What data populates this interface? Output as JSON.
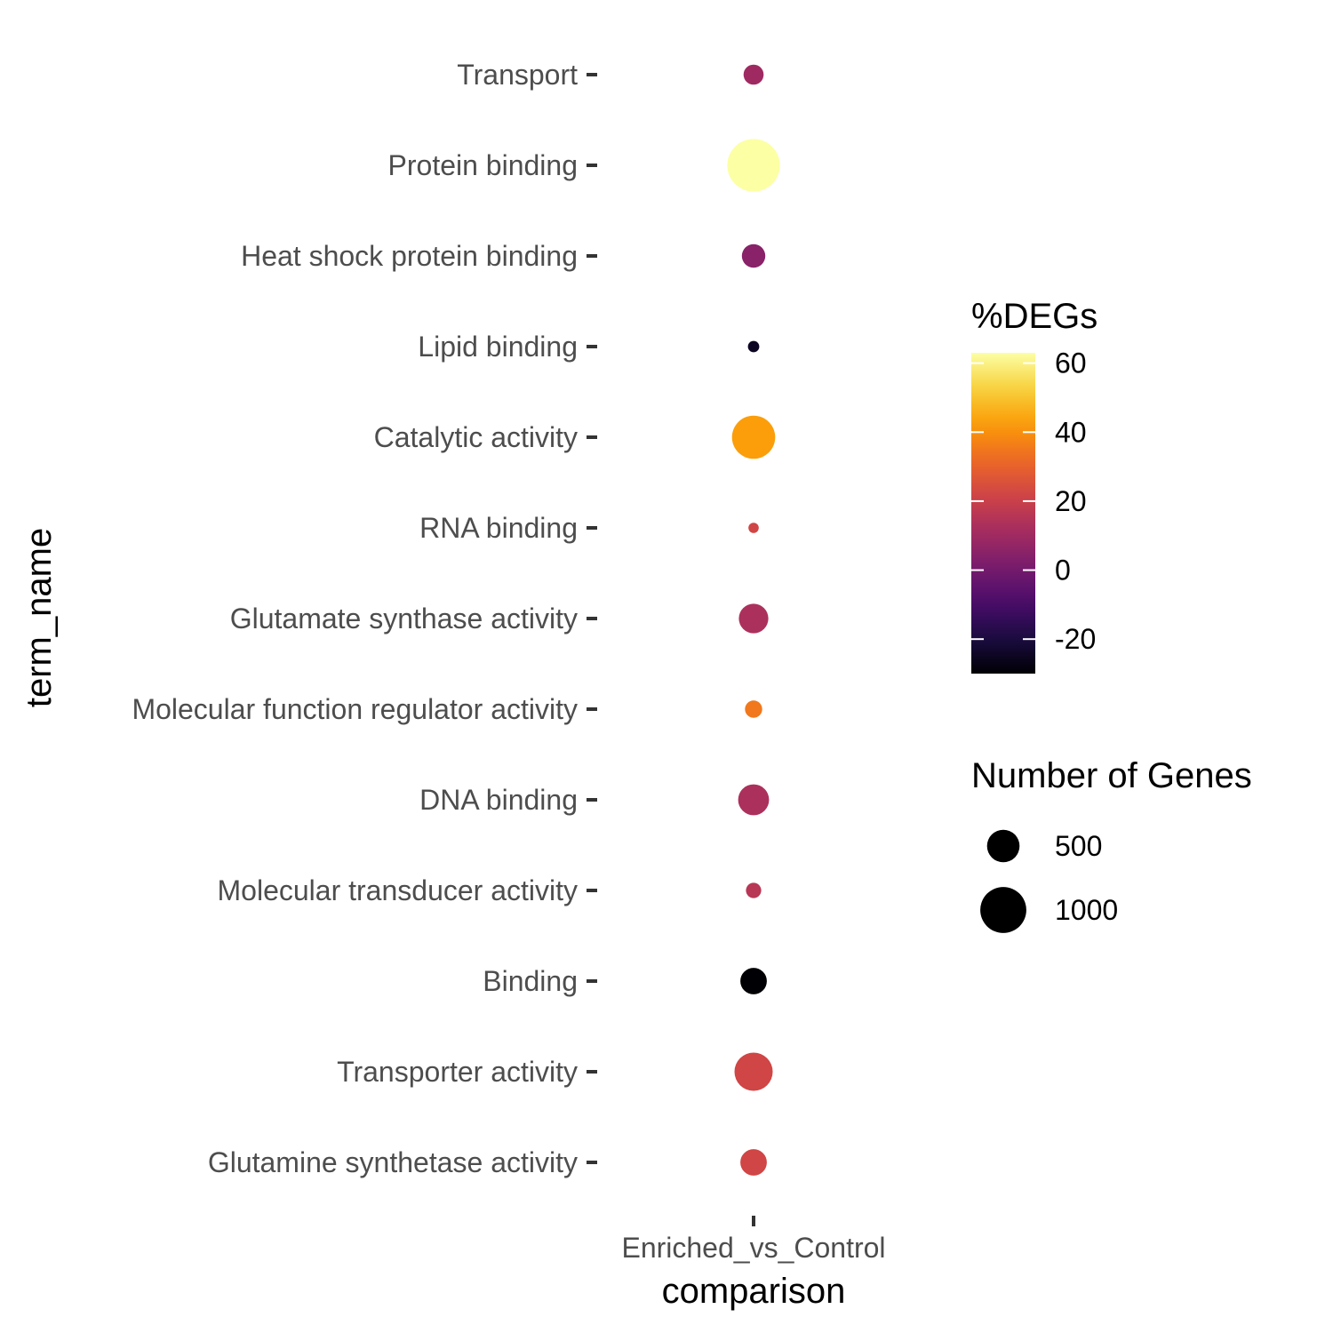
{
  "chart_data": {
    "type": "dot",
    "x_categories": [
      "Enriched_vs_Control"
    ],
    "y_categories": [
      "Transport",
      "Protein binding",
      "Heat shock protein binding",
      "Lipid binding",
      "Catalytic activity",
      "RNA binding",
      "Glutamate synthase activity",
      "Molecular function regulator activity",
      "DNA binding",
      "Molecular transducer activity",
      "Binding",
      "Transporter activity",
      "Glutamine synthetase activity"
    ],
    "points": [
      {
        "x": "Enriched_vs_Control",
        "y": "Transport",
        "pct_degs": 10,
        "genes": 190
      },
      {
        "x": "Enriched_vs_Control",
        "y": "Protein binding",
        "pct_degs": 63,
        "genes": 1300
      },
      {
        "x": "Enriched_vs_Control",
        "y": "Heat shock protein binding",
        "pct_degs": 5,
        "genes": 260
      },
      {
        "x": "Enriched_vs_Control",
        "y": "Lipid binding",
        "pct_degs": -25,
        "genes": 60
      },
      {
        "x": "Enriched_vs_Control",
        "y": "Catalytic activity",
        "pct_degs": 43,
        "genes": 880
      },
      {
        "x": "Enriched_vs_Control",
        "y": "RNA binding",
        "pct_degs": 22,
        "genes": 50
      },
      {
        "x": "Enriched_vs_Control",
        "y": "Glutamate synthase activity",
        "pct_degs": 13,
        "genes": 410
      },
      {
        "x": "Enriched_vs_Control",
        "y": "Molecular function regulator activity",
        "pct_degs": 35,
        "genes": 140
      },
      {
        "x": "Enriched_vs_Control",
        "y": "DNA binding",
        "pct_degs": 13,
        "genes": 450
      },
      {
        "x": "Enriched_vs_Control",
        "y": "Molecular transducer activity",
        "pct_degs": 16,
        "genes": 110
      },
      {
        "x": "Enriched_vs_Control",
        "y": "Binding",
        "pct_degs": -30,
        "genes": 330
      },
      {
        "x": "Enriched_vs_Control",
        "y": "Transporter activity",
        "pct_degs": 22,
        "genes": 690
      },
      {
        "x": "Enriched_vs_Control",
        "y": "Glutamine synthetase activity",
        "pct_degs": 22,
        "genes": 330
      }
    ],
    "xlabel": "comparison",
    "ylabel": "term_name",
    "color_legend": {
      "title": "%DEGs",
      "breaks": [
        60,
        40,
        20,
        0,
        -20
      ],
      "range": [
        -30,
        63
      ],
      "palette": "inferno"
    },
    "size_legend": {
      "title": "Number of Genes",
      "breaks": [
        500,
        1000
      ]
    },
    "grid": false,
    "legend_position": "right"
  },
  "colors": {
    "inferno_stops": [
      "#000004",
      "#1b0c41",
      "#4a0c6b",
      "#781c6d",
      "#a52c60",
      "#cf4446",
      "#ed6925",
      "#fb9b06",
      "#f7d13d",
      "#fcffa4"
    ]
  }
}
